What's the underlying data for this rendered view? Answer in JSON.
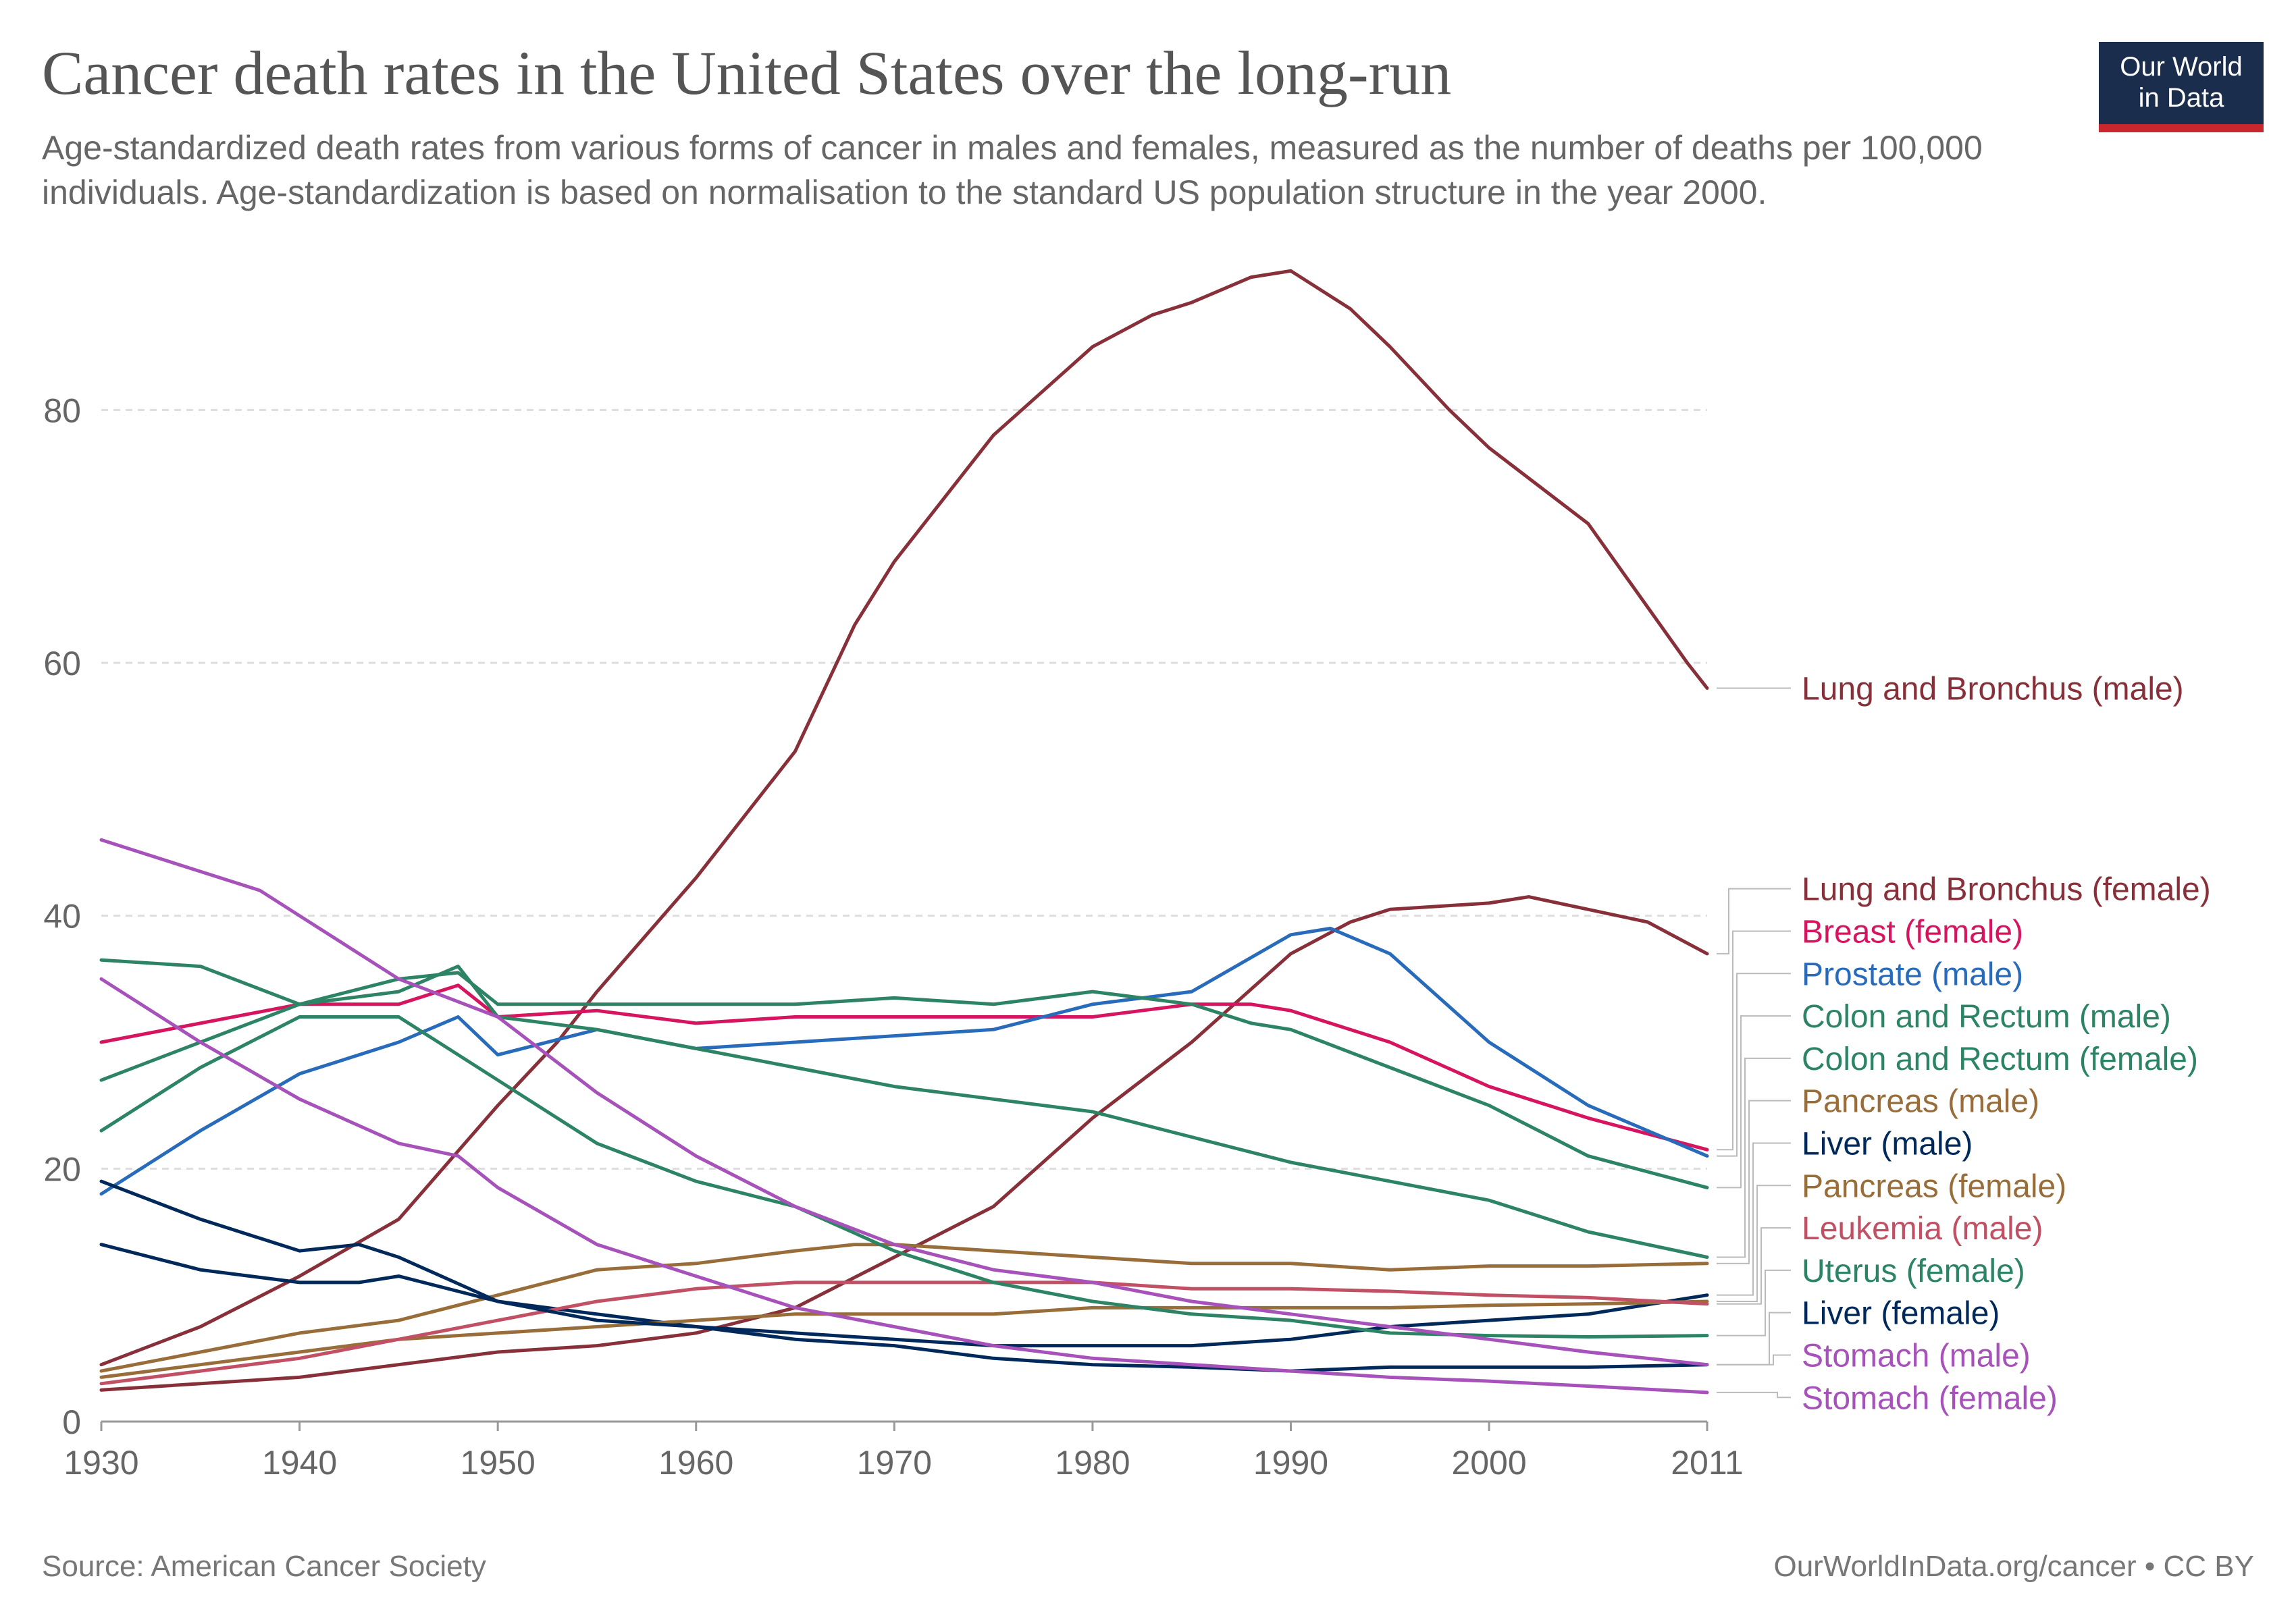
{
  "title": "Cancer death rates in the United States over the long-run",
  "subtitle": "Age-standardized death rates from various forms of cancer in males and females, measured as the number of deaths per 100,000 individuals. Age-standardization is based on normalisation to the standard US population structure in the year 2000.",
  "logo": {
    "text": "Our World\nin Data",
    "bg": "#1a2d4d",
    "bar": "#c8282d"
  },
  "source": "Source: American Cancer Society",
  "credit": "OurWorldInData.org/cancer • CC BY",
  "chart_data": {
    "type": "line",
    "xlim": [
      1930,
      2011
    ],
    "ylim": [
      0,
      90
    ],
    "yticks": [
      0,
      20,
      40,
      60,
      80
    ],
    "xticks": [
      1930,
      1940,
      1950,
      1960,
      1970,
      1980,
      1990,
      2000,
      2011
    ],
    "grid": "horizontal dashed",
    "legend": "right, line-end labels",
    "series": [
      {
        "name": "Lung and Bronchus (male)",
        "color": "#883039",
        "x": [
          1930,
          1935,
          1940,
          1945,
          1950,
          1953,
          1955,
          1960,
          1965,
          1968,
          1970,
          1975,
          1980,
          1983,
          1985,
          1988,
          1990,
          1993,
          1995,
          1998,
          2000,
          2005,
          2010,
          2011
        ],
        "y": [
          4.5,
          7.5,
          11.5,
          16,
          25,
          30,
          34,
          43,
          53,
          63,
          68,
          78,
          85,
          87.5,
          88.5,
          90.5,
          91,
          88,
          85,
          80,
          77,
          71,
          60,
          58
        ]
      },
      {
        "name": "Lung and Bronchus (female)",
        "color": "#883039",
        "x": [
          1930,
          1940,
          1950,
          1955,
          1960,
          1965,
          1970,
          1975,
          1980,
          1985,
          1990,
          1993,
          1995,
          2000,
          2002,
          2005,
          2008,
          2011
        ],
        "y": [
          2.5,
          3.5,
          5.5,
          6,
          7,
          9,
          13,
          17,
          24,
          30,
          37,
          39.5,
          40.5,
          41,
          41.5,
          40.5,
          39.5,
          37
        ]
      },
      {
        "name": "Breast (female)",
        "color": "#d6145f",
        "x": [
          1930,
          1940,
          1945,
          1948,
          1950,
          1955,
          1960,
          1965,
          1970,
          1975,
          1980,
          1985,
          1988,
          1990,
          1995,
          2000,
          2005,
          2011
        ],
        "y": [
          30,
          33,
          33,
          34.5,
          32,
          32.5,
          31.5,
          32,
          32,
          32,
          32,
          33,
          33,
          32.5,
          30,
          26.5,
          24,
          21.5
        ]
      },
      {
        "name": "Prostate (male)",
        "color": "#286bbb",
        "x": [
          1930,
          1935,
          1940,
          1945,
          1948,
          1950,
          1955,
          1960,
          1965,
          1970,
          1975,
          1980,
          1985,
          1990,
          1992,
          1995,
          2000,
          2005,
          2011
        ],
        "y": [
          18,
          23,
          27.5,
          30,
          32,
          29,
          31,
          29.5,
          30,
          30.5,
          31,
          33,
          34,
          38.5,
          39,
          37,
          30,
          25,
          21
        ]
      },
      {
        "name": "Colon and Rectum (male)",
        "color": "#2c8465",
        "x": [
          1930,
          1935,
          1940,
          1945,
          1948,
          1950,
          1955,
          1960,
          1965,
          1970,
          1975,
          1980,
          1985,
          1988,
          1990,
          1995,
          2000,
          2005,
          2011
        ],
        "y": [
          27,
          30,
          33,
          35,
          35.5,
          33,
          33,
          33,
          33,
          33.5,
          33,
          34,
          33,
          31.5,
          31,
          28,
          25,
          21,
          18.5
        ]
      },
      {
        "name": "Colon and Rectum (female)",
        "color": "#2c8465",
        "x": [
          1930,
          1935,
          1940,
          1945,
          1948,
          1950,
          1955,
          1960,
          1965,
          1970,
          1975,
          1980,
          1985,
          1990,
          1995,
          2000,
          2005,
          2011
        ],
        "y": [
          36.5,
          36,
          33,
          34,
          36,
          32,
          31,
          29.5,
          28,
          26.5,
          25.5,
          24.5,
          22.5,
          20.5,
          19,
          17.5,
          15,
          13
        ]
      },
      {
        "name": "Pancreas (male)",
        "color": "#996d39",
        "x": [
          1930,
          1935,
          1940,
          1945,
          1950,
          1955,
          1960,
          1965,
          1968,
          1970,
          1975,
          1980,
          1985,
          1990,
          1995,
          2000,
          2005,
          2011
        ],
        "y": [
          4,
          5.5,
          7,
          8,
          10,
          12,
          12.5,
          13.5,
          14,
          14,
          13.5,
          13,
          12.5,
          12.5,
          12,
          12.3,
          12.3,
          12.5
        ]
      },
      {
        "name": "Liver (male)",
        "color": "#00295b",
        "x": [
          1930,
          1935,
          1940,
          1943,
          1945,
          1950,
          1955,
          1960,
          1965,
          1970,
          1975,
          1980,
          1985,
          1990,
          1995,
          2000,
          2005,
          2011
        ],
        "y": [
          14,
          12,
          11,
          11,
          11.5,
          9.5,
          8.5,
          7.5,
          7,
          6.5,
          6,
          6,
          6,
          6.5,
          7.5,
          8,
          8.5,
          10
        ]
      },
      {
        "name": "Pancreas (female)",
        "color": "#996d39",
        "x": [
          1930,
          1935,
          1940,
          1945,
          1950,
          1955,
          1960,
          1965,
          1970,
          1975,
          1980,
          1985,
          1990,
          1995,
          2000,
          2005,
          2011
        ],
        "y": [
          3.5,
          4.5,
          5.5,
          6.5,
          7,
          7.5,
          8,
          8.5,
          8.5,
          8.5,
          9,
          9,
          9,
          9,
          9.2,
          9.3,
          9.5
        ]
      },
      {
        "name": "Leukemia (male)",
        "color": "#c15065",
        "x": [
          1930,
          1935,
          1940,
          1945,
          1950,
          1955,
          1960,
          1965,
          1970,
          1975,
          1980,
          1985,
          1990,
          1995,
          2000,
          2005,
          2011
        ],
        "y": [
          3,
          4,
          5,
          6.5,
          8,
          9.5,
          10.5,
          11,
          11,
          11,
          11,
          10.5,
          10.5,
          10.3,
          10,
          9.8,
          9.3
        ]
      },
      {
        "name": "Uterus (female)",
        "color": "#2c8465",
        "x": [
          1930,
          1935,
          1940,
          1945,
          1950,
          1955,
          1960,
          1965,
          1970,
          1975,
          1980,
          1985,
          1990,
          1995,
          2000,
          2005,
          2011
        ],
        "y": [
          23,
          28,
          32,
          32,
          27,
          22,
          19,
          17,
          13.5,
          11,
          9.5,
          8.5,
          8,
          7,
          6.8,
          6.7,
          6.8
        ]
      },
      {
        "name": "Liver (female)",
        "color": "#00295b",
        "x": [
          1930,
          1935,
          1940,
          1943,
          1945,
          1950,
          1955,
          1960,
          1965,
          1970,
          1975,
          1980,
          1985,
          1990,
          1995,
          2000,
          2005,
          2011
        ],
        "y": [
          19,
          16,
          13.5,
          14,
          13,
          9.5,
          8,
          7.5,
          6.5,
          6,
          5,
          4.5,
          4.3,
          4,
          4.3,
          4.3,
          4.3,
          4.5
        ]
      },
      {
        "name": "Stomach (male)",
        "color": "#a652ba",
        "x": [
          1930,
          1935,
          1938,
          1940,
          1945,
          1950,
          1955,
          1960,
          1965,
          1970,
          1975,
          1980,
          1985,
          1990,
          1995,
          2000,
          2005,
          2011
        ],
        "y": [
          46,
          43.5,
          42,
          40,
          35,
          32,
          26,
          21,
          17,
          14,
          12,
          11,
          9.5,
          8.5,
          7.5,
          6.5,
          5.5,
          4.5
        ]
      },
      {
        "name": "Stomach (female)",
        "color": "#a652ba",
        "x": [
          1930,
          1935,
          1940,
          1945,
          1948,
          1950,
          1955,
          1960,
          1965,
          1970,
          1975,
          1980,
          1985,
          1990,
          1995,
          2000,
          2005,
          2011
        ],
        "y": [
          35,
          30,
          25.5,
          22,
          21,
          18.5,
          14,
          11.5,
          9,
          7.5,
          6,
          5,
          4.5,
          4,
          3.5,
          3.2,
          2.8,
          2.3
        ]
      }
    ]
  }
}
